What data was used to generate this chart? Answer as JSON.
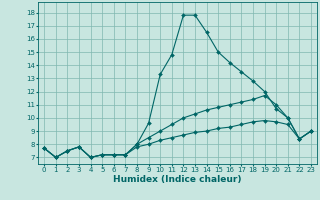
{
  "xlabel": "Humidex (Indice chaleur)",
  "background_color": "#c8e6e0",
  "line_color": "#006666",
  "grid_color": "#80b8b0",
  "xlim": [
    -0.5,
    23.5
  ],
  "ylim": [
    6.5,
    18.8
  ],
  "xticks": [
    0,
    1,
    2,
    3,
    4,
    5,
    6,
    7,
    8,
    9,
    10,
    11,
    12,
    13,
    14,
    15,
    16,
    17,
    18,
    19,
    20,
    21,
    22,
    23
  ],
  "yticks": [
    7,
    8,
    9,
    10,
    11,
    12,
    13,
    14,
    15,
    16,
    17,
    18
  ],
  "lines": [
    {
      "x": [
        0,
        1,
        2,
        3,
        4,
        5,
        6,
        7,
        8,
        9,
        10,
        11,
        12,
        13,
        14,
        15,
        16,
        17,
        18,
        19,
        20,
        21,
        22,
        23
      ],
      "y": [
        7.7,
        7.0,
        7.5,
        7.8,
        7.0,
        7.2,
        7.2,
        7.2,
        8.0,
        9.6,
        13.3,
        14.8,
        17.8,
        17.8,
        16.5,
        15.0,
        14.2,
        13.5,
        12.8,
        12.0,
        10.7,
        10.0,
        8.4,
        9.0
      ]
    },
    {
      "x": [
        0,
        1,
        2,
        3,
        4,
        5,
        6,
        7,
        8,
        9,
        10,
        11,
        12,
        13,
        14,
        15,
        16,
        17,
        18,
        19,
        20,
        21,
        22,
        23
      ],
      "y": [
        7.7,
        7.0,
        7.5,
        7.8,
        7.0,
        7.2,
        7.2,
        7.2,
        8.0,
        8.5,
        9.0,
        9.5,
        10.0,
        10.3,
        10.6,
        10.8,
        11.0,
        11.2,
        11.4,
        11.7,
        11.0,
        10.0,
        8.4,
        9.0
      ]
    },
    {
      "x": [
        0,
        1,
        2,
        3,
        4,
        5,
        6,
        7,
        8,
        9,
        10,
        11,
        12,
        13,
        14,
        15,
        16,
        17,
        18,
        19,
        20,
        21,
        22,
        23
      ],
      "y": [
        7.7,
        7.0,
        7.5,
        7.8,
        7.0,
        7.2,
        7.2,
        7.2,
        7.8,
        8.0,
        8.3,
        8.5,
        8.7,
        8.9,
        9.0,
        9.2,
        9.3,
        9.5,
        9.7,
        9.8,
        9.7,
        9.5,
        8.4,
        9.0
      ]
    }
  ],
  "xlabel_fontsize": 6.5,
  "tick_fontsize": 5.0
}
